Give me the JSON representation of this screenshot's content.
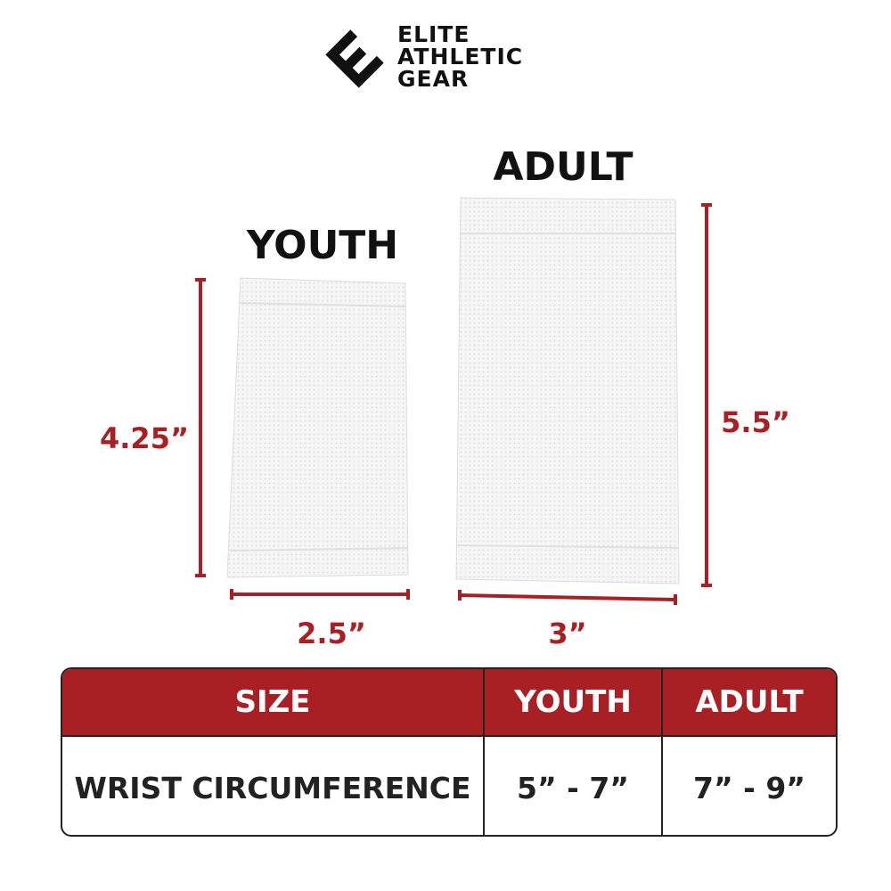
{
  "brand": {
    "name_lines": [
      "ELITE",
      "ATHLETIC",
      "GEAR"
    ],
    "icon": "e-logo-icon"
  },
  "products": {
    "youth": {
      "label": "YOUTH",
      "height": "4.25”",
      "width": "2.5”"
    },
    "adult": {
      "label": "ADULT",
      "height": "5.5”",
      "width": "3”"
    }
  },
  "table": {
    "headers": [
      "SIZE",
      "YOUTH",
      "ADULT"
    ],
    "rows": [
      [
        "WRIST CIRCUMFERENCE",
        "5” - 7”",
        "7” - 9”"
      ]
    ]
  },
  "colors": {
    "accent": "#a81f24",
    "text": "#111111",
    "sleeve": "#f4f4f4"
  }
}
